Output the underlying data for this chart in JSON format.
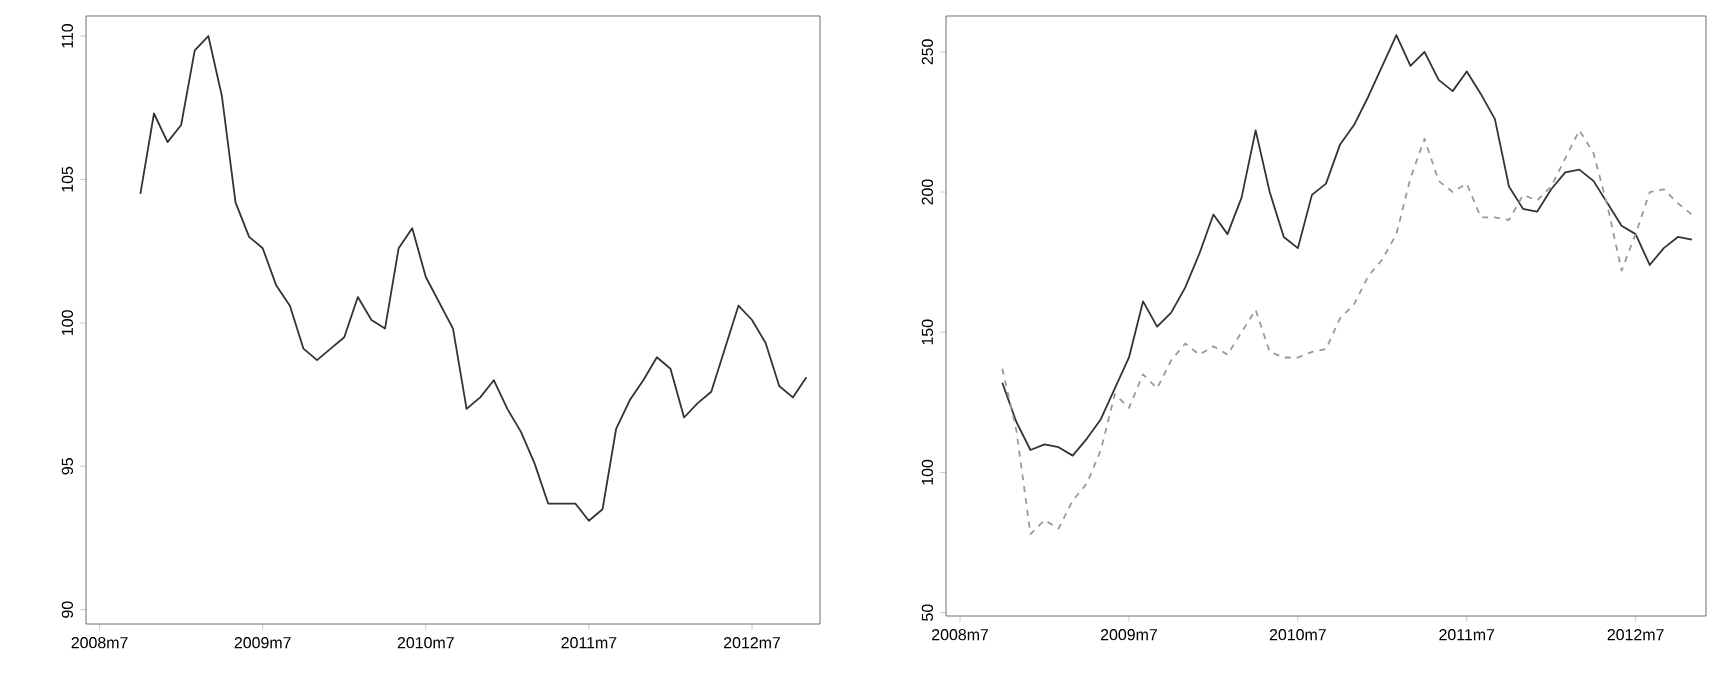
{
  "chart_data": [
    {
      "type": "line",
      "x": [
        "2008-10",
        "2008-11",
        "2008-12",
        "2009-01",
        "2009-02",
        "2009-03",
        "2009-04",
        "2009-05",
        "2009-06",
        "2009-07",
        "2009-08",
        "2009-09",
        "2009-10",
        "2009-11",
        "2009-12",
        "2010-01",
        "2010-02",
        "2010-03",
        "2010-04",
        "2010-05",
        "2010-06",
        "2010-07",
        "2010-08",
        "2010-09",
        "2010-10",
        "2010-11",
        "2010-12",
        "2011-01",
        "2011-02",
        "2011-03",
        "2011-04",
        "2011-05",
        "2011-06",
        "2011-07",
        "2011-08",
        "2011-09",
        "2011-10",
        "2011-11",
        "2011-12",
        "2012-01",
        "2012-02",
        "2012-03",
        "2012-04",
        "2012-05",
        "2012-06",
        "2012-07",
        "2012-08",
        "2012-09",
        "2012-10",
        "2012-11"
      ],
      "series": [
        {
          "color": "#333333",
          "line_style": "solid",
          "values": [
            104.5,
            107.3,
            106.3,
            106.9,
            109.5,
            110.0,
            107.9,
            104.2,
            103.0,
            102.6,
            101.3,
            100.6,
            99.1,
            98.7,
            99.1,
            99.5,
            100.9,
            100.1,
            99.8,
            102.6,
            103.3,
            101.6,
            100.7,
            99.8,
            97.0,
            97.4,
            98.0,
            97.0,
            96.2,
            95.1,
            93.7,
            93.7,
            93.7,
            93.1,
            93.5,
            96.3,
            97.3,
            98.0,
            98.8,
            98.4,
            96.7,
            97.2,
            97.6,
            99.1,
            100.6,
            100.1,
            99.3,
            97.8,
            97.4,
            98.1
          ]
        }
      ],
      "xlim": [
        "2008-06",
        "2012-12"
      ],
      "ylim": [
        89.5,
        110.7
      ],
      "xticks": [
        {
          "value": "2008-07",
          "label": "2008m7"
        },
        {
          "value": "2009-07",
          "label": "2009m7"
        },
        {
          "value": "2010-07",
          "label": "2010m7"
        },
        {
          "value": "2011-07",
          "label": "2011m7"
        },
        {
          "value": "2012-07",
          "label": "2012m7"
        }
      ],
      "yticks": [
        90,
        95,
        100,
        105,
        110
      ],
      "grid": false,
      "marker": "none"
    },
    {
      "type": "line",
      "x": [
        "2008-10",
        "2008-11",
        "2008-12",
        "2009-01",
        "2009-02",
        "2009-03",
        "2009-04",
        "2009-05",
        "2009-06",
        "2009-07",
        "2009-08",
        "2009-09",
        "2009-10",
        "2009-11",
        "2009-12",
        "2010-01",
        "2010-02",
        "2010-03",
        "2010-04",
        "2010-05",
        "2010-06",
        "2010-07",
        "2010-08",
        "2010-09",
        "2010-10",
        "2010-11",
        "2010-12",
        "2011-01",
        "2011-02",
        "2011-03",
        "2011-04",
        "2011-05",
        "2011-06",
        "2011-07",
        "2011-08",
        "2011-09",
        "2011-10",
        "2011-11",
        "2011-12",
        "2012-01",
        "2012-02",
        "2012-03",
        "2012-04",
        "2012-05",
        "2012-06",
        "2012-07",
        "2012-08",
        "2012-09",
        "2012-10",
        "2012-11"
      ],
      "series": [
        {
          "color": "#333333",
          "line_style": "solid",
          "values": [
            132,
            118,
            108,
            110,
            109,
            106,
            112,
            119,
            130,
            141,
            161,
            152,
            157,
            166,
            178,
            192,
            185,
            198,
            222,
            200,
            184,
            180,
            199,
            203,
            217,
            224,
            234,
            245,
            256,
            245,
            250,
            240,
            236,
            243,
            235,
            226,
            202,
            194,
            193,
            201,
            207,
            208,
            204,
            196,
            188,
            185,
            174,
            180,
            184,
            183
          ]
        },
        {
          "color": "#999999",
          "line_style": "dashed",
          "values": [
            137,
            115,
            78,
            83,
            80,
            90,
            96,
            108,
            128,
            123,
            135,
            130,
            140,
            146,
            142,
            145,
            142,
            150,
            158,
            143,
            141,
            141,
            143,
            144,
            155,
            160,
            170,
            176,
            185,
            205,
            219,
            204,
            200,
            203,
            191,
            191,
            190,
            199,
            197,
            202,
            212,
            222,
            214,
            195,
            172,
            185,
            200,
            201,
            196,
            192
          ]
        }
      ],
      "xlim": [
        "2008-06",
        "2012-12"
      ],
      "ylim": [
        48.8,
        262.8
      ],
      "xticks": [
        {
          "value": "2008-07",
          "label": "2008m7"
        },
        {
          "value": "2009-07",
          "label": "2009m7"
        },
        {
          "value": "2010-07",
          "label": "2010m7"
        },
        {
          "value": "2011-07",
          "label": "2011m7"
        },
        {
          "value": "2012-07",
          "label": "2012m7"
        }
      ],
      "yticks": [
        50,
        100,
        150,
        200,
        250
      ],
      "grid": false,
      "marker": "none"
    }
  ]
}
